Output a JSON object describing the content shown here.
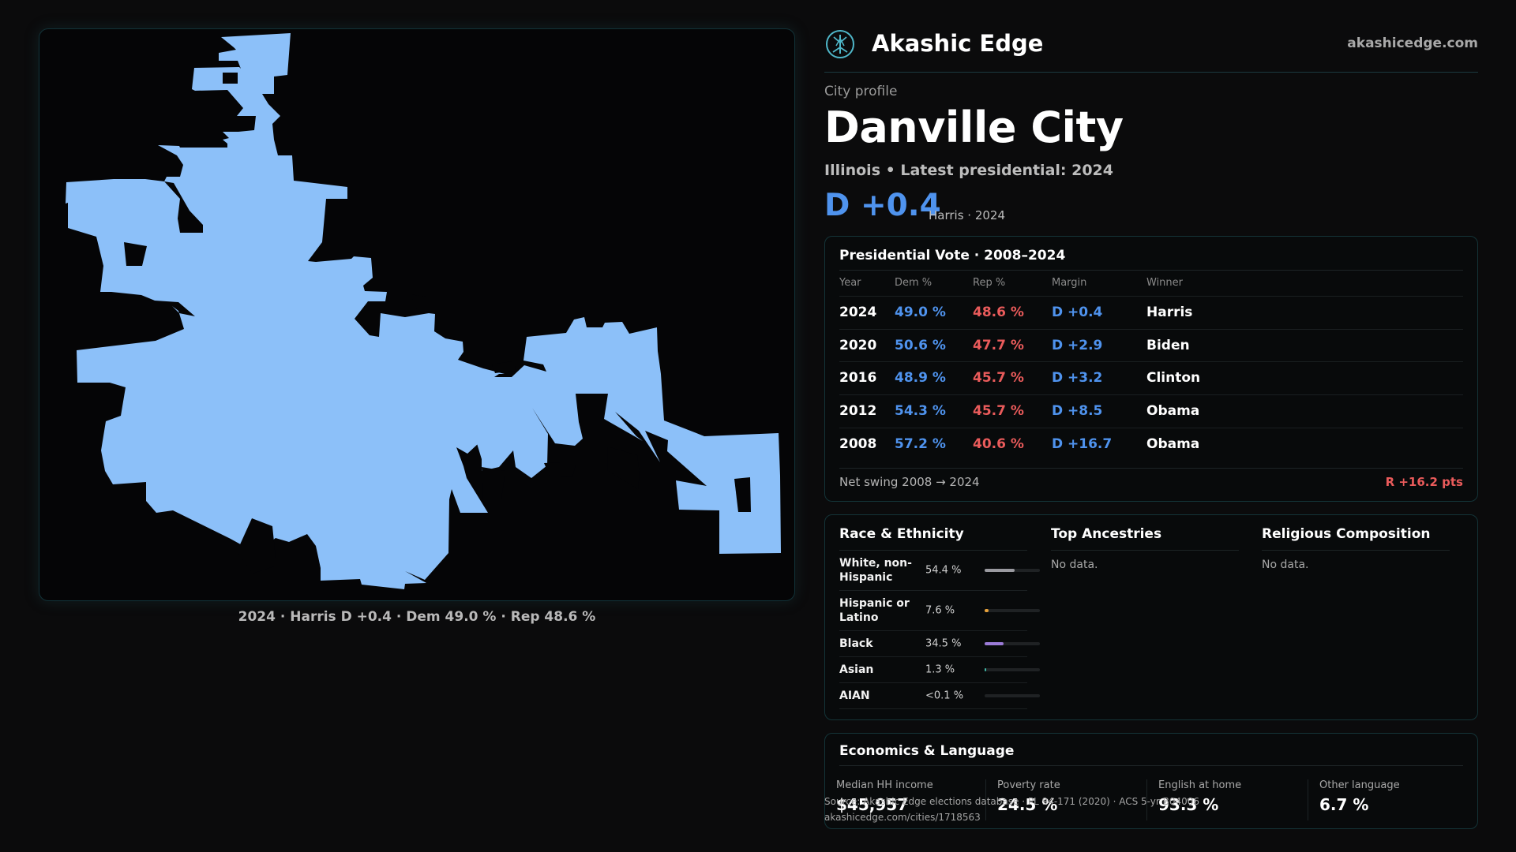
{
  "map": {
    "fill_color": "#8cc0f9",
    "caption": "2024 · Harris D +0.4 · Dem 49.0 % · Rep 48.6 %"
  },
  "brand": {
    "name": "Akashic Edge",
    "url": "akashicedge.com",
    "logo_icon": "tree-icon"
  },
  "header": {
    "kicker": "City profile",
    "city": "Danville City",
    "subline": "Illinois • Latest presidential: 2024",
    "margin": "D +0.4",
    "margin_sub": "Harris · 2024"
  },
  "vote": {
    "title": "Presidential Vote · 2008–2024",
    "headers": {
      "year": "Year",
      "dem": "Dem %",
      "rep": "Rep %",
      "margin": "Margin",
      "winner": "Winner"
    },
    "rows": [
      {
        "year": "2024",
        "dem": "49.0 %",
        "rep": "48.6 %",
        "margin": "D +0.4",
        "winner": "Harris"
      },
      {
        "year": "2020",
        "dem": "50.6 %",
        "rep": "47.7 %",
        "margin": "D +2.9",
        "winner": "Biden"
      },
      {
        "year": "2016",
        "dem": "48.9 %",
        "rep": "45.7 %",
        "margin": "D +3.2",
        "winner": "Clinton"
      },
      {
        "year": "2012",
        "dem": "54.3 %",
        "rep": "45.7 %",
        "margin": "D +8.5",
        "winner": "Obama"
      },
      {
        "year": "2008",
        "dem": "57.2 %",
        "rep": "40.6 %",
        "margin": "D +16.7",
        "winner": "Obama"
      }
    ],
    "swing_label": "Net swing 2008 → 2024",
    "swing_value": "R +16.2 pts",
    "dem_color": "#4f93ee",
    "rep_color": "#ea5b5b"
  },
  "race": {
    "title": "Race & Ethnicity",
    "items": [
      {
        "label": "White, non-Hispanic",
        "pct": "54.4 %",
        "share": 0.544,
        "color": "#9a9aa0"
      },
      {
        "label": "Hispanic or Latino",
        "pct": "7.6 %",
        "share": 0.076,
        "color": "#e8a23a"
      },
      {
        "label": "Black",
        "pct": "34.5 %",
        "share": 0.345,
        "color": "#9b7bd8"
      },
      {
        "label": "Asian",
        "pct": "1.3 %",
        "share": 0.013,
        "color": "#3fb6a5"
      },
      {
        "label": "AIAN",
        "pct": "<0.1 %",
        "share": 0.0,
        "color": "#7a7a7a"
      }
    ]
  },
  "ancestries": {
    "title": "Top Ancestries",
    "empty": "No data."
  },
  "religion": {
    "title": "Religious Composition",
    "empty": "No data."
  },
  "econ": {
    "title": "Economics & Language",
    "stats": [
      {
        "label": "Median HH income",
        "value": "$45,957"
      },
      {
        "label": "Poverty rate",
        "value": "24.5 %"
      },
      {
        "label": "English at home",
        "value": "93.3 %"
      },
      {
        "label": "Other language",
        "value": "6.7 %"
      }
    ]
  },
  "footer": {
    "source": "Source: Akashic Edge elections database · PL 94-171 (2020) · ACS 5-yr B04006",
    "link": "akashicedge.com/cities/1718563"
  }
}
